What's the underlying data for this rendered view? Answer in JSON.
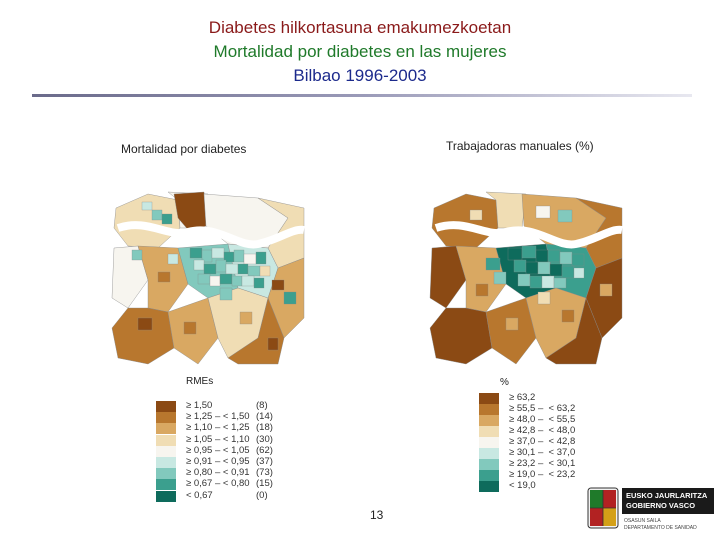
{
  "header": {
    "title_eu": "Diabetes hilkortasuna emakumezkoetan",
    "title_es": "Mortalidad por diabetes en las mujeres",
    "subtitle": "Bilbao 1996-2003"
  },
  "map_left": {
    "label": "Mortalidad por diabetes"
  },
  "map_right": {
    "label": "Trabajadoras manuales (%)"
  },
  "legend_left": {
    "title": "RMEs",
    "items": [
      {
        "text": "≥ 1,50",
        "count": "(8)",
        "color": "#8b4a14"
      },
      {
        "text": "≥ 1,25 – < 1,50",
        "count": "(14)",
        "color": "#b8772e"
      },
      {
        "text": "≥ 1,10 – < 1,25",
        "count": "(18)",
        "color": "#d9a862"
      },
      {
        "text": "≥ 1,05 – < 1,10",
        "count": "(30)",
        "color": "#f0ddb4"
      },
      {
        "text": "≥ 0,95 – < 1,05",
        "count": "(62)",
        "color": "#f7f5ef"
      },
      {
        "text": "≥ 0,91 – < 0,95",
        "count": "(37)",
        "color": "#c8e8e2"
      },
      {
        "text": "≥ 0,80 – < 0,91",
        "count": "(73)",
        "color": "#82c9bd"
      },
      {
        "text": "≥ 0,67 – < 0,80",
        "count": "(15)",
        "color": "#3b9f8e"
      },
      {
        "text": "< 0,67",
        "count": "(0)",
        "color": "#0e6b5c"
      }
    ]
  },
  "legend_right": {
    "title": "%",
    "items": [
      {
        "text": "≥ 63,2",
        "color": "#8b4a14"
      },
      {
        "text": "≥ 55,5 –  < 63,2",
        "color": "#b8772e"
      },
      {
        "text": "≥ 48,0 –  < 55,5",
        "color": "#d9a862"
      },
      {
        "text": "≥ 42,8 –  < 48,0",
        "color": "#f0ddb4"
      },
      {
        "text": "≥ 37,0 –  < 42,8",
        "color": "#f7f5ef"
      },
      {
        "text": "≥ 30,1 –  < 37,0",
        "color": "#c8e8e2"
      },
      {
        "text": "≥ 23,2 –  < 30,1",
        "color": "#82c9bd"
      },
      {
        "text": "≥ 19,0 –  < 23,2",
        "color": "#3b9f8e"
      },
      {
        "text": "< 19,0",
        "color": "#0e6b5c"
      }
    ]
  },
  "footer": {
    "page_number": "13",
    "logo_line1": "EUSKO JAURLARITZA",
    "logo_line2": "GOBIERNO VASCO",
    "logo_line3": "OSASUN SAILA",
    "logo_line4": "DEPARTAMENTO DE SANIDAD",
    "logo_color": "#1a1a1a"
  }
}
